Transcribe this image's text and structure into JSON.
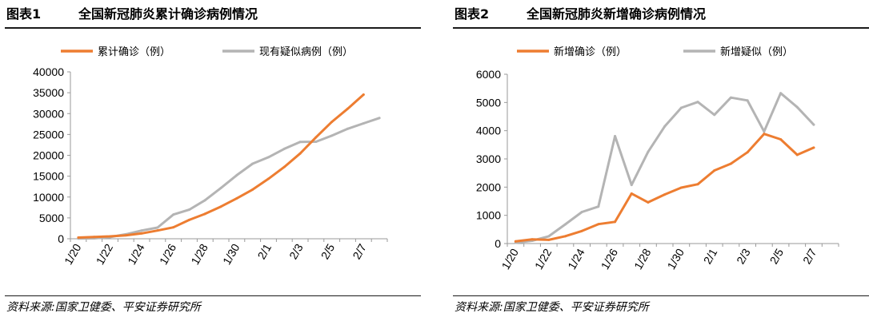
{
  "source_text": "资料来源:国家卫健委、平安证券研究所",
  "charts": [
    {
      "figure_label": "图表1",
      "title": "全国新冠肺炎累计确诊病例情况"
    },
    {
      "figure_label": "图表2",
      "title": "全国新冠肺炎新增确诊病例情况"
    }
  ],
  "chart_data": [
    {
      "type": "line",
      "title": "全国新冠肺炎累计确诊病例情况",
      "xlabel": "",
      "ylabel": "",
      "x": [
        "1/20",
        "1/21",
        "1/22",
        "1/23",
        "1/24",
        "1/25",
        "1/26",
        "1/27",
        "1/28",
        "1/29",
        "1/30",
        "1/31",
        "2/1",
        "2/2",
        "2/3",
        "2/4",
        "2/5",
        "2/6",
        "2/7",
        "2/8"
      ],
      "x_tick_labels": [
        "1/20",
        "1/22",
        "1/24",
        "1/26",
        "1/28",
        "1/30",
        "2/1",
        "2/3",
        "2/5",
        "2/7"
      ],
      "y_ticks": [
        0,
        5000,
        10000,
        15000,
        20000,
        25000,
        30000,
        35000,
        40000
      ],
      "ylim": [
        0,
        40000
      ],
      "grid": false,
      "legend_position": "top",
      "series": [
        {
          "name": "累计确诊（例）",
          "color": "#ed7d31",
          "values": [
            291,
            440,
            571,
            830,
            1287,
            1975,
            2744,
            4515,
            5974,
            7711,
            9692,
            11791,
            14380,
            17205,
            20438,
            24324,
            28018,
            31161,
            34546,
            null
          ]
        },
        {
          "name": "现有疑似病例（例）",
          "color": "#b4b4b4",
          "values": [
            54,
            100,
            393,
            1072,
            1965,
            2684,
            5794,
            6973,
            9239,
            12167,
            15238,
            17988,
            19544,
            21558,
            23214,
            23260,
            24702,
            26359,
            27657,
            28942
          ]
        }
      ]
    },
    {
      "type": "line",
      "title": "全国新冠肺炎新增确诊病例情况",
      "xlabel": "",
      "ylabel": "",
      "x": [
        "1/20",
        "1/21",
        "1/22",
        "1/23",
        "1/24",
        "1/25",
        "1/26",
        "1/27",
        "1/28",
        "1/29",
        "1/30",
        "1/31",
        "2/1",
        "2/2",
        "2/3",
        "2/4",
        "2/5",
        "2/6",
        "2/7",
        "2/8"
      ],
      "x_tick_labels": [
        "1/20",
        "1/22",
        "1/24",
        "1/26",
        "1/28",
        "1/30",
        "2/1",
        "2/3",
        "2/5",
        "2/7"
      ],
      "y_ticks": [
        0,
        1000,
        2000,
        3000,
        4000,
        5000,
        6000
      ],
      "ylim": [
        0,
        6000
      ],
      "grid": false,
      "legend_position": "top",
      "series": [
        {
          "name": "新增确诊（例）",
          "color": "#ed7d31",
          "values": [
            77,
            149,
            131,
            259,
            444,
            688,
            769,
            1771,
            1459,
            1737,
            1982,
            2102,
            2590,
            2829,
            3235,
            3887,
            3694,
            3143,
            3399,
            null
          ]
        },
        {
          "name": "新增疑似（例）",
          "color": "#b4b4b4",
          "values": [
            27,
            100,
            257,
            680,
            1118,
            1309,
            3806,
            2077,
            3248,
            4148,
            4812,
            5019,
            4562,
            5173,
            5072,
            3971,
            5328,
            4833,
            4214,
            null
          ]
        }
      ]
    }
  ]
}
